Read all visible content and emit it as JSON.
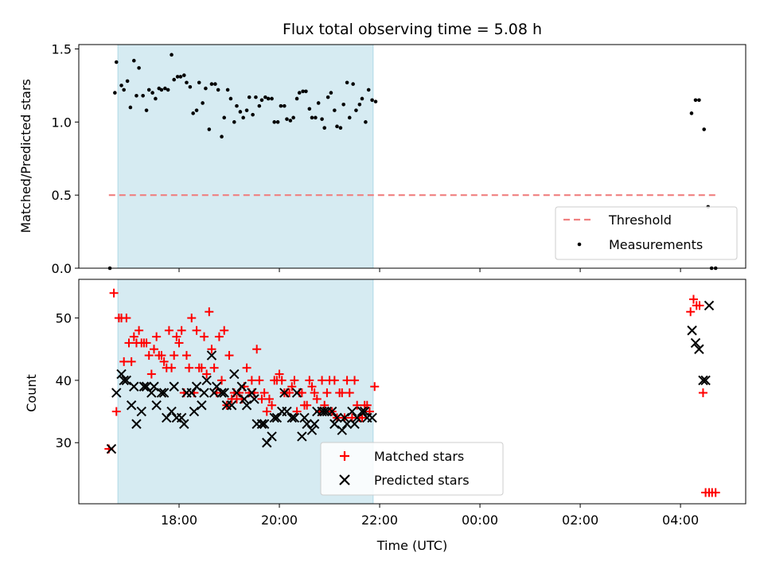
{
  "chart_data": [
    {
      "type": "scatter",
      "panel": "top",
      "title": "Flux total observing time = 5.08 h",
      "xlabel": "",
      "ylabel": "Matched/Predicted stars",
      "ylim": [
        0,
        1.53
      ],
      "yticks": [
        0.0,
        0.5,
        1.0,
        1.5
      ],
      "ytick_labels": [
        "0.0",
        "0.5",
        "1.0",
        "1.5"
      ],
      "shaded_span_hours": [
        16.78,
        21.87
      ],
      "shade_color": "#add8e6",
      "threshold": {
        "name": "Threshold",
        "value": 0.5,
        "x_range": [
          16.6,
          28.7
        ],
        "color": "#f08080"
      },
      "series": [
        {
          "name": "Measurements",
          "color": "#000000",
          "x": [
            16.62,
            16.72,
            16.85,
            16.97,
            17.1,
            17.2,
            17.35,
            17.47,
            17.6,
            17.72,
            17.85,
            17.97,
            18.1,
            18.22,
            18.35,
            18.47,
            18.6,
            18.72,
            18.85,
            18.97,
            19.1,
            19.22,
            19.35,
            19.47,
            19.6,
            19.72,
            19.85,
            19.97,
            20.1,
            20.22,
            20.35,
            20.47,
            20.6,
            20.72,
            20.85,
            20.97,
            21.1,
            21.22,
            21.35,
            21.47,
            21.6,
            21.72,
            21.85,
            16.75,
            16.9,
            17.03,
            17.15,
            17.28,
            17.4,
            17.53,
            17.65,
            17.78,
            17.9,
            18.03,
            18.15,
            18.28,
            18.4,
            18.53,
            18.65,
            18.78,
            18.9,
            19.03,
            19.15,
            19.28,
            19.4,
            19.53,
            19.65,
            19.78,
            19.9,
            20.03,
            20.15,
            20.28,
            20.4,
            20.53,
            20.65,
            20.78,
            20.9,
            21.03,
            21.15,
            21.28,
            21.4,
            21.53,
            21.65,
            21.78,
            21.92,
            28.22,
            28.3,
            28.37,
            28.47,
            28.55,
            28.62,
            28.7
          ],
          "y": [
            0.0,
            1.2,
            1.25,
            1.28,
            1.42,
            1.37,
            1.08,
            1.2,
            1.23,
            1.23,
            1.46,
            1.31,
            1.32,
            1.24,
            1.08,
            1.13,
            0.95,
            1.26,
            0.9,
            1.22,
            1.0,
            1.07,
            1.08,
            1.05,
            1.11,
            1.17,
            1.16,
            1.0,
            1.11,
            1.01,
            1.16,
            1.21,
            1.09,
            1.03,
            1.02,
            1.17,
            1.08,
            0.96,
            1.27,
            1.26,
            1.12,
            1.0,
            1.15,
            1.41,
            1.22,
            1.1,
            1.18,
            1.18,
            1.22,
            1.16,
            1.22,
            1.22,
            1.29,
            1.31,
            1.27,
            1.06,
            1.27,
            1.23,
            1.26,
            1.22,
            1.03,
            1.16,
            1.11,
            1.03,
            1.17,
            1.17,
            1.15,
            1.16,
            1.0,
            1.11,
            1.02,
            1.03,
            1.2,
            1.21,
            1.03,
            1.13,
            0.96,
            1.2,
            0.97,
            1.12,
            1.03,
            1.08,
            1.16,
            1.22,
            1.14,
            1.06,
            1.15,
            1.15,
            0.95,
            0.42,
            0.0,
            0.0
          ]
        }
      ],
      "legend": {
        "placement": "lower right",
        "entries": [
          "Threshold",
          "Measurements"
        ]
      }
    },
    {
      "type": "scatter",
      "panel": "bottom",
      "title": "",
      "xlabel": "Time (UTC)",
      "ylabel": "Count",
      "ylim": [
        20.2,
        56.2
      ],
      "yticks": [
        30,
        40,
        50
      ],
      "ytick_labels": [
        "30",
        "40",
        "50"
      ],
      "xlim_hours": [
        16.0,
        29.3
      ],
      "xticks_hours": [
        18,
        20,
        22,
        24,
        26,
        28
      ],
      "xtick_labels": [
        "18:00",
        "20:00",
        "22:00",
        "00:00",
        "02:00",
        "04:00"
      ],
      "shaded_span_hours": [
        16.78,
        21.87
      ],
      "shade_color": "#add8e6",
      "series": [
        {
          "name": "Matched stars",
          "marker": "plus",
          "color": "#ff0000",
          "x": [
            16.6,
            16.7,
            16.8,
            16.9,
            17.0,
            17.1,
            17.2,
            17.3,
            17.4,
            17.5,
            17.6,
            17.7,
            17.8,
            17.9,
            18.0,
            18.1,
            18.2,
            18.3,
            18.4,
            18.5,
            18.6,
            18.7,
            18.8,
            18.9,
            19.0,
            19.1,
            19.2,
            19.3,
            19.4,
            19.5,
            19.6,
            19.7,
            19.8,
            19.9,
            20.0,
            20.1,
            20.2,
            20.3,
            20.4,
            20.5,
            20.6,
            20.7,
            20.8,
            20.9,
            21.0,
            21.1,
            21.2,
            21.3,
            21.4,
            21.5,
            21.6,
            21.7,
            21.8,
            21.9,
            16.75,
            16.85,
            16.95,
            17.05,
            17.15,
            17.25,
            17.35,
            17.45,
            17.55,
            17.65,
            17.75,
            17.85,
            17.95,
            18.05,
            18.15,
            18.25,
            18.35,
            18.45,
            18.55,
            18.65,
            18.75,
            18.85,
            18.95,
            19.05,
            19.15,
            19.25,
            19.35,
            19.45,
            19.55,
            19.65,
            19.75,
            19.85,
            19.95,
            20.05,
            20.15,
            20.25,
            20.35,
            20.45,
            20.55,
            20.65,
            20.75,
            20.85,
            20.95,
            21.05,
            21.15,
            21.25,
            21.35,
            21.45,
            21.55,
            21.65,
            21.75,
            28.2,
            28.26,
            28.32,
            28.38,
            28.45,
            28.5,
            28.57,
            28.63,
            28.7
          ],
          "y": [
            29,
            54,
            50,
            43,
            46,
            47,
            48,
            46,
            44,
            45,
            44,
            43,
            48,
            44,
            46,
            38,
            42,
            38,
            42,
            47,
            51,
            42,
            47,
            48,
            44,
            38,
            38,
            39,
            38,
            38,
            40,
            38,
            37,
            40,
            41,
            38,
            38,
            40,
            38,
            36,
            40,
            38,
            35,
            36,
            40,
            40,
            38,
            34,
            38,
            40,
            34,
            36,
            35,
            39,
            35,
            50,
            50,
            43,
            46,
            46,
            46,
            41,
            47,
            44,
            42,
            42,
            47,
            48,
            44,
            50,
            48,
            42,
            41,
            45,
            38,
            40,
            36,
            37,
            37,
            37,
            42,
            40,
            45,
            37,
            35,
            36,
            40,
            40,
            38,
            39,
            35,
            38,
            36,
            39,
            37,
            40,
            38,
            35,
            34,
            38,
            40,
            34,
            36,
            34,
            36,
            51,
            53,
            52,
            52,
            38,
            22,
            22,
            22,
            22
          ]
        },
        {
          "name": "Predicted stars",
          "marker": "x",
          "color": "#000000",
          "x": [
            16.65,
            16.75,
            16.85,
            16.95,
            17.05,
            17.15,
            17.25,
            17.35,
            17.45,
            17.55,
            17.65,
            17.75,
            17.85,
            17.95,
            18.05,
            18.15,
            18.25,
            18.35,
            18.45,
            18.55,
            18.65,
            18.75,
            18.85,
            18.95,
            19.05,
            19.15,
            19.25,
            19.35,
            19.45,
            19.55,
            19.65,
            19.75,
            19.85,
            19.95,
            20.05,
            20.15,
            20.25,
            20.35,
            20.45,
            20.55,
            20.65,
            20.75,
            20.85,
            20.95,
            21.05,
            21.15,
            21.25,
            21.35,
            21.45,
            21.55,
            21.65,
            21.75,
            21.85,
            16.9,
            17.1,
            17.3,
            17.5,
            17.7,
            17.9,
            18.1,
            18.3,
            18.5,
            18.7,
            18.9,
            19.1,
            19.3,
            19.5,
            19.7,
            19.9,
            20.1,
            20.3,
            20.5,
            20.7,
            20.9,
            21.1,
            21.3,
            21.5,
            21.7,
            28.23,
            28.3,
            28.37,
            28.45,
            28.5,
            28.57
          ],
          "y": [
            29,
            38,
            41,
            40,
            36,
            33,
            35,
            39,
            38,
            36,
            38,
            34,
            35,
            34,
            34,
            38,
            38,
            39,
            36,
            40,
            44,
            39,
            38,
            36,
            36,
            38,
            39,
            36,
            38,
            33,
            33,
            30,
            31,
            34,
            35,
            35,
            34,
            38,
            31,
            33,
            32,
            35,
            35,
            35,
            35,
            34,
            32,
            33,
            35,
            34,
            35,
            34,
            34,
            40,
            39,
            39,
            39,
            38,
            39,
            33,
            35,
            38,
            38,
            38,
            41,
            37,
            37,
            33,
            34,
            38,
            34,
            34,
            33,
            35,
            33,
            34,
            33,
            35,
            48,
            46,
            45,
            40,
            40,
            52
          ],
          "note": ""
        }
      ],
      "legend": {
        "placement": "lower center",
        "entries": [
          "Matched stars",
          "Predicted stars"
        ]
      }
    }
  ]
}
